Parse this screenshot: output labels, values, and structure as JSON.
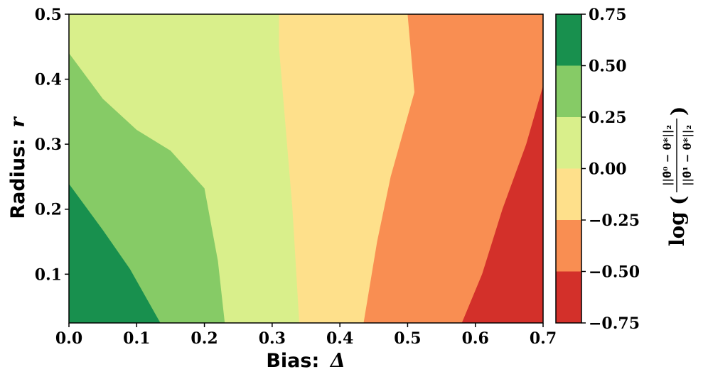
{
  "chart_data": {
    "type": "heatmap",
    "subtype": "filled-contour",
    "title": "",
    "xlabel": {
      "text": "Bias:",
      "symbol": "Δ"
    },
    "ylabel": {
      "text": "Radius:",
      "symbol": "r"
    },
    "xlim": [
      0.0,
      0.7
    ],
    "ylim": [
      0.025,
      0.5
    ],
    "xticks": [
      "0.0",
      "0.1",
      "0.2",
      "0.3",
      "0.4",
      "0.5",
      "0.6",
      "0.7"
    ],
    "yticks": [
      "0.1",
      "0.2",
      "0.3",
      "0.4",
      "0.5"
    ],
    "colorbar": {
      "label": {
        "prefix": "log",
        "numerator": "||θ̂⁰ − θ*||₂",
        "denominator": "||θ̂¹ − θ*||₂"
      },
      "range": [
        -0.75,
        0.75
      ],
      "ticks": [
        "0.75",
        "0.50",
        "0.25",
        "0.00",
        "−0.25",
        "−0.50",
        "−0.75"
      ],
      "levels": [
        {
          "from": 0.5,
          "to": 0.75,
          "color": "#18904e"
        },
        {
          "from": 0.25,
          "to": 0.5,
          "color": "#86cb66"
        },
        {
          "from": 0.0,
          "to": 0.25,
          "color": "#d9ef8b"
        },
        {
          "from": -0.25,
          "to": 0.0,
          "color": "#fee08b"
        },
        {
          "from": -0.5,
          "to": -0.25,
          "color": "#f98e52"
        },
        {
          "from": -0.75,
          "to": -0.5,
          "color": "#d3302a"
        }
      ]
    },
    "contour_boundaries": [
      {
        "level": 0.5,
        "points": [
          [
            0.0,
            0.239
          ],
          [
            0.05,
            0.168
          ],
          [
            0.09,
            0.108
          ],
          [
            0.135,
            0.025
          ]
        ]
      },
      {
        "level": 0.25,
        "points": [
          [
            0.0,
            0.44
          ],
          [
            0.05,
            0.37
          ],
          [
            0.1,
            0.322
          ],
          [
            0.15,
            0.29
          ],
          [
            0.2,
            0.232
          ],
          [
            0.22,
            0.12
          ],
          [
            0.23,
            0.025
          ]
        ]
      },
      {
        "level": 0.0,
        "points": [
          [
            0.31,
            0.5
          ],
          [
            0.31,
            0.45
          ],
          [
            0.33,
            0.2
          ],
          [
            0.34,
            0.025
          ]
        ]
      },
      {
        "level": -0.25,
        "points": [
          [
            0.5,
            0.5
          ],
          [
            0.51,
            0.38
          ],
          [
            0.475,
            0.25
          ],
          [
            0.455,
            0.15
          ],
          [
            0.435,
            0.025
          ]
        ]
      },
      {
        "level": -0.5,
        "points": [
          [
            0.7,
            0.39
          ],
          [
            0.675,
            0.3
          ],
          [
            0.64,
            0.2
          ],
          [
            0.61,
            0.1
          ],
          [
            0.58,
            0.025
          ]
        ]
      }
    ]
  }
}
